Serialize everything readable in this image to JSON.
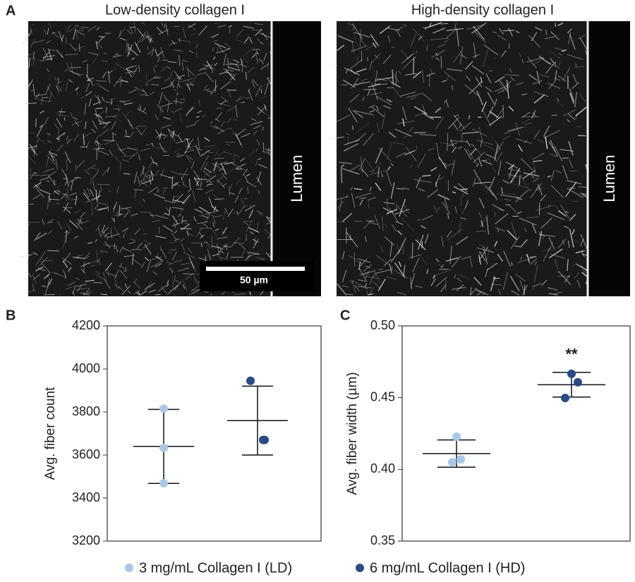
{
  "figure": {
    "panel_labels": [
      "A",
      "B",
      "C"
    ],
    "images": [
      {
        "title": "Low-density collagen I",
        "label": "Lumen"
      },
      {
        "title": "High-density collagen I",
        "label": "Lumen"
      }
    ],
    "scale_bar": "50 µm"
  },
  "chart_data": [
    {
      "type": "scatter",
      "ylabel": "Avg. fiber count",
      "ylim": [
        3200,
        4200
      ],
      "yticks": [
        3200,
        3400,
        3600,
        3800,
        4000,
        4200
      ],
      "series": [
        {
          "name": "3 mg/mL Collagen I (LD)",
          "color": "#a9c8e8",
          "values": [
            3816,
            3633,
            3469
          ],
          "mean": 3640,
          "error": 172
        },
        {
          "name": "6 mg/mL Collagen I (HD)",
          "color": "#2a4b8a",
          "values": [
            3945,
            3670,
            3670
          ],
          "mean": 3760,
          "error": 160
        }
      ]
    },
    {
      "type": "scatter",
      "ylabel": "Avg. fiber width (µm)",
      "ylim": [
        0.35,
        0.5
      ],
      "yticks": [
        0.35,
        {
          "value": 0.4,
          "label": "0.40"
        },
        0.45,
        {
          "value": 0.5,
          "label": "0.50"
        }
      ],
      "annotation": "**",
      "series": [
        {
          "color": "#a9c8e8",
          "values": [
            0.4228,
            0.407,
            0.405
          ],
          "mean": 0.411,
          "error": 0.0095
        },
        {
          "color": "#2a4b8a",
          "values": [
            0.4666,
            0.4607,
            0.4498
          ],
          "mean": 0.459,
          "error": 0.0086
        }
      ]
    }
  ]
}
